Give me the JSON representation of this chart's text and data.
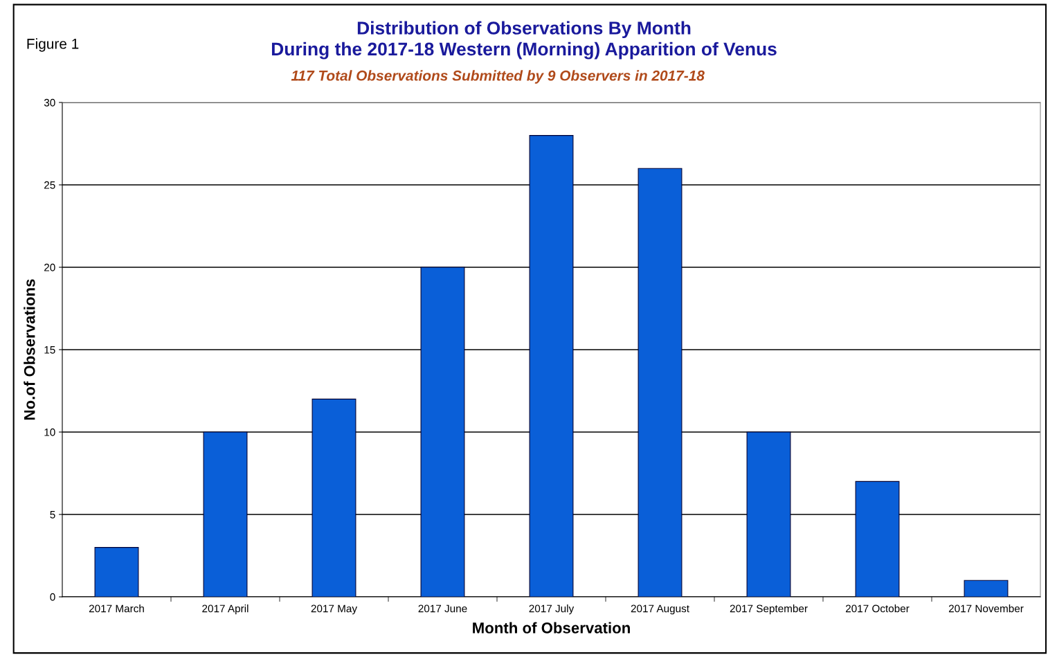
{
  "chart_data": {
    "type": "bar",
    "title": "Distribution of Observations By Month\nDuring the 2017-18 Western (Morning) Apparition of Venus",
    "subtitle": "117 Total Observations Submitted by 9 Observers in 2017-18",
    "xlabel": "Month of Observation",
    "ylabel": "No.of Observations",
    "annotations": [
      "Figure 1"
    ],
    "categories": [
      "2017 March",
      "2017 April",
      "2017 May",
      "2017 June",
      "2017 July",
      "2017 August",
      "2017 September",
      "2017 October",
      "2017 November"
    ],
    "values": [
      3,
      10,
      12,
      20,
      28,
      26,
      10,
      7,
      1
    ],
    "color": "#0a5fd8",
    "ylim": [
      0,
      30
    ],
    "yticks": [
      0,
      5,
      10,
      15,
      20,
      25,
      30
    ],
    "grid": "y"
  }
}
